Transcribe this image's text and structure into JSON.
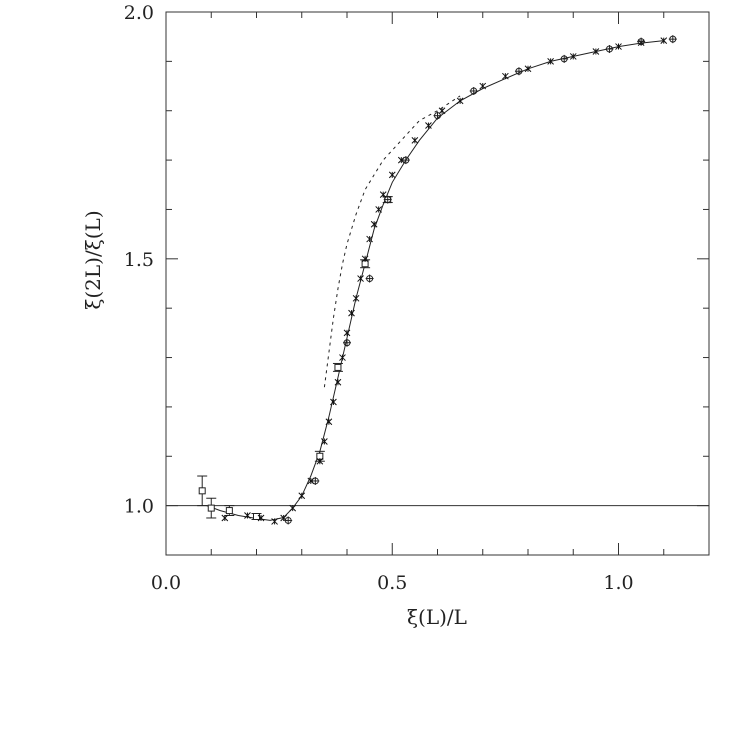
{
  "chart_data": {
    "type": "scatter",
    "title": "",
    "xlabel": "ξ(L)/L",
    "ylabel": "ξ(2L)/ξ(L)",
    "xlim": [
      0.0,
      1.2
    ],
    "ylim": [
      0.9,
      2.0
    ],
    "xticks": [
      0.0,
      0.5,
      1.0
    ],
    "xtick_labels": [
      "0.0",
      "0.5",
      "1.0"
    ],
    "yticks": [
      1.0,
      1.5,
      2.0
    ],
    "ytick_labels": [
      "1.0",
      "1.5",
      "2.0"
    ],
    "grid": false,
    "reference_line_y": 1.0,
    "series": [
      {
        "style": "squares-with-errorbars",
        "points": [
          {
            "x": 0.08,
            "y": 1.03,
            "err": 0.03
          },
          {
            "x": 0.1,
            "y": 0.995,
            "err": 0.02
          },
          {
            "x": 0.14,
            "y": 0.99,
            "err": 0.01
          },
          {
            "x": 0.2,
            "y": 0.978,
            "err": 0.006
          },
          {
            "x": 0.34,
            "y": 1.1,
            "err": 0.01
          },
          {
            "x": 0.38,
            "y": 1.28,
            "err": 0.008
          },
          {
            "x": 0.44,
            "y": 1.49,
            "err": 0.008
          },
          {
            "x": 0.49,
            "y": 1.62,
            "err": 0.006
          }
        ]
      },
      {
        "style": "crosses",
        "points": [
          {
            "x": 0.13,
            "y": 0.975
          },
          {
            "x": 0.18,
            "y": 0.98
          },
          {
            "x": 0.21,
            "y": 0.975
          },
          {
            "x": 0.24,
            "y": 0.968
          },
          {
            "x": 0.26,
            "y": 0.975
          },
          {
            "x": 0.28,
            "y": 0.995
          },
          {
            "x": 0.3,
            "y": 1.02
          },
          {
            "x": 0.32,
            "y": 1.05
          },
          {
            "x": 0.34,
            "y": 1.09
          },
          {
            "x": 0.35,
            "y": 1.13
          },
          {
            "x": 0.36,
            "y": 1.17
          },
          {
            "x": 0.37,
            "y": 1.21
          },
          {
            "x": 0.38,
            "y": 1.25
          },
          {
            "x": 0.39,
            "y": 1.3
          },
          {
            "x": 0.4,
            "y": 1.35
          },
          {
            "x": 0.41,
            "y": 1.39
          },
          {
            "x": 0.42,
            "y": 1.42
          },
          {
            "x": 0.43,
            "y": 1.46
          },
          {
            "x": 0.44,
            "y": 1.5
          },
          {
            "x": 0.45,
            "y": 1.54
          },
          {
            "x": 0.46,
            "y": 1.57
          },
          {
            "x": 0.47,
            "y": 1.6
          },
          {
            "x": 0.48,
            "y": 1.63
          },
          {
            "x": 0.5,
            "y": 1.67
          },
          {
            "x": 0.52,
            "y": 1.7
          },
          {
            "x": 0.55,
            "y": 1.74
          },
          {
            "x": 0.58,
            "y": 1.77
          },
          {
            "x": 0.61,
            "y": 1.8
          },
          {
            "x": 0.65,
            "y": 1.82
          },
          {
            "x": 0.7,
            "y": 1.85
          },
          {
            "x": 0.75,
            "y": 1.87
          },
          {
            "x": 0.8,
            "y": 1.885
          },
          {
            "x": 0.85,
            "y": 1.9
          },
          {
            "x": 0.9,
            "y": 1.91
          },
          {
            "x": 0.95,
            "y": 1.92
          },
          {
            "x": 1.0,
            "y": 1.93
          },
          {
            "x": 1.05,
            "y": 1.938
          },
          {
            "x": 1.1,
            "y": 1.942
          }
        ]
      },
      {
        "style": "circles-plus",
        "points": [
          {
            "x": 0.27,
            "y": 0.97
          },
          {
            "x": 0.33,
            "y": 1.05
          },
          {
            "x": 0.4,
            "y": 1.33
          },
          {
            "x": 0.45,
            "y": 1.46
          },
          {
            "x": 0.49,
            "y": 1.62
          },
          {
            "x": 0.53,
            "y": 1.7
          },
          {
            "x": 0.6,
            "y": 1.79
          },
          {
            "x": 0.68,
            "y": 1.84
          },
          {
            "x": 0.78,
            "y": 1.88
          },
          {
            "x": 0.88,
            "y": 1.905
          },
          {
            "x": 0.98,
            "y": 1.925
          },
          {
            "x": 1.05,
            "y": 1.94
          },
          {
            "x": 1.12,
            "y": 1.945
          }
        ]
      },
      {
        "style": "solid-curve",
        "points": [
          {
            "x": 0.09,
            "y": 1.0
          },
          {
            "x": 0.12,
            "y": 0.99
          },
          {
            "x": 0.16,
            "y": 0.98
          },
          {
            "x": 0.2,
            "y": 0.974
          },
          {
            "x": 0.23,
            "y": 0.97
          },
          {
            "x": 0.26,
            "y": 0.976
          },
          {
            "x": 0.28,
            "y": 0.995
          },
          {
            "x": 0.3,
            "y": 1.02
          },
          {
            "x": 0.32,
            "y": 1.06
          },
          {
            "x": 0.34,
            "y": 1.11
          },
          {
            "x": 0.36,
            "y": 1.18
          },
          {
            "x": 0.38,
            "y": 1.26
          },
          {
            "x": 0.4,
            "y": 1.34
          },
          {
            "x": 0.42,
            "y": 1.42
          },
          {
            "x": 0.44,
            "y": 1.49
          },
          {
            "x": 0.46,
            "y": 1.56
          },
          {
            "x": 0.48,
            "y": 1.61
          },
          {
            "x": 0.5,
            "y": 1.655
          },
          {
            "x": 0.53,
            "y": 1.7
          },
          {
            "x": 0.56,
            "y": 1.74
          },
          {
            "x": 0.6,
            "y": 1.785
          },
          {
            "x": 0.65,
            "y": 1.82
          },
          {
            "x": 0.7,
            "y": 1.845
          },
          {
            "x": 0.75,
            "y": 1.865
          },
          {
            "x": 0.8,
            "y": 1.885
          },
          {
            "x": 0.85,
            "y": 1.9
          },
          {
            "x": 0.9,
            "y": 1.91
          },
          {
            "x": 0.95,
            "y": 1.92
          },
          {
            "x": 1.0,
            "y": 1.93
          },
          {
            "x": 1.05,
            "y": 1.937
          },
          {
            "x": 1.1,
            "y": 1.942
          }
        ]
      },
      {
        "style": "dashed-curve",
        "points": [
          {
            "x": 0.35,
            "y": 1.24
          },
          {
            "x": 0.36,
            "y": 1.31
          },
          {
            "x": 0.37,
            "y": 1.38
          },
          {
            "x": 0.38,
            "y": 1.44
          },
          {
            "x": 0.39,
            "y": 1.49
          },
          {
            "x": 0.4,
            "y": 1.53
          },
          {
            "x": 0.42,
            "y": 1.59
          },
          {
            "x": 0.44,
            "y": 1.64
          },
          {
            "x": 0.46,
            "y": 1.67
          },
          {
            "x": 0.48,
            "y": 1.7
          },
          {
            "x": 0.5,
            "y": 1.72
          },
          {
            "x": 0.53,
            "y": 1.75
          },
          {
            "x": 0.56,
            "y": 1.78
          },
          {
            "x": 0.6,
            "y": 1.8
          },
          {
            "x": 0.65,
            "y": 1.83
          }
        ]
      }
    ]
  }
}
